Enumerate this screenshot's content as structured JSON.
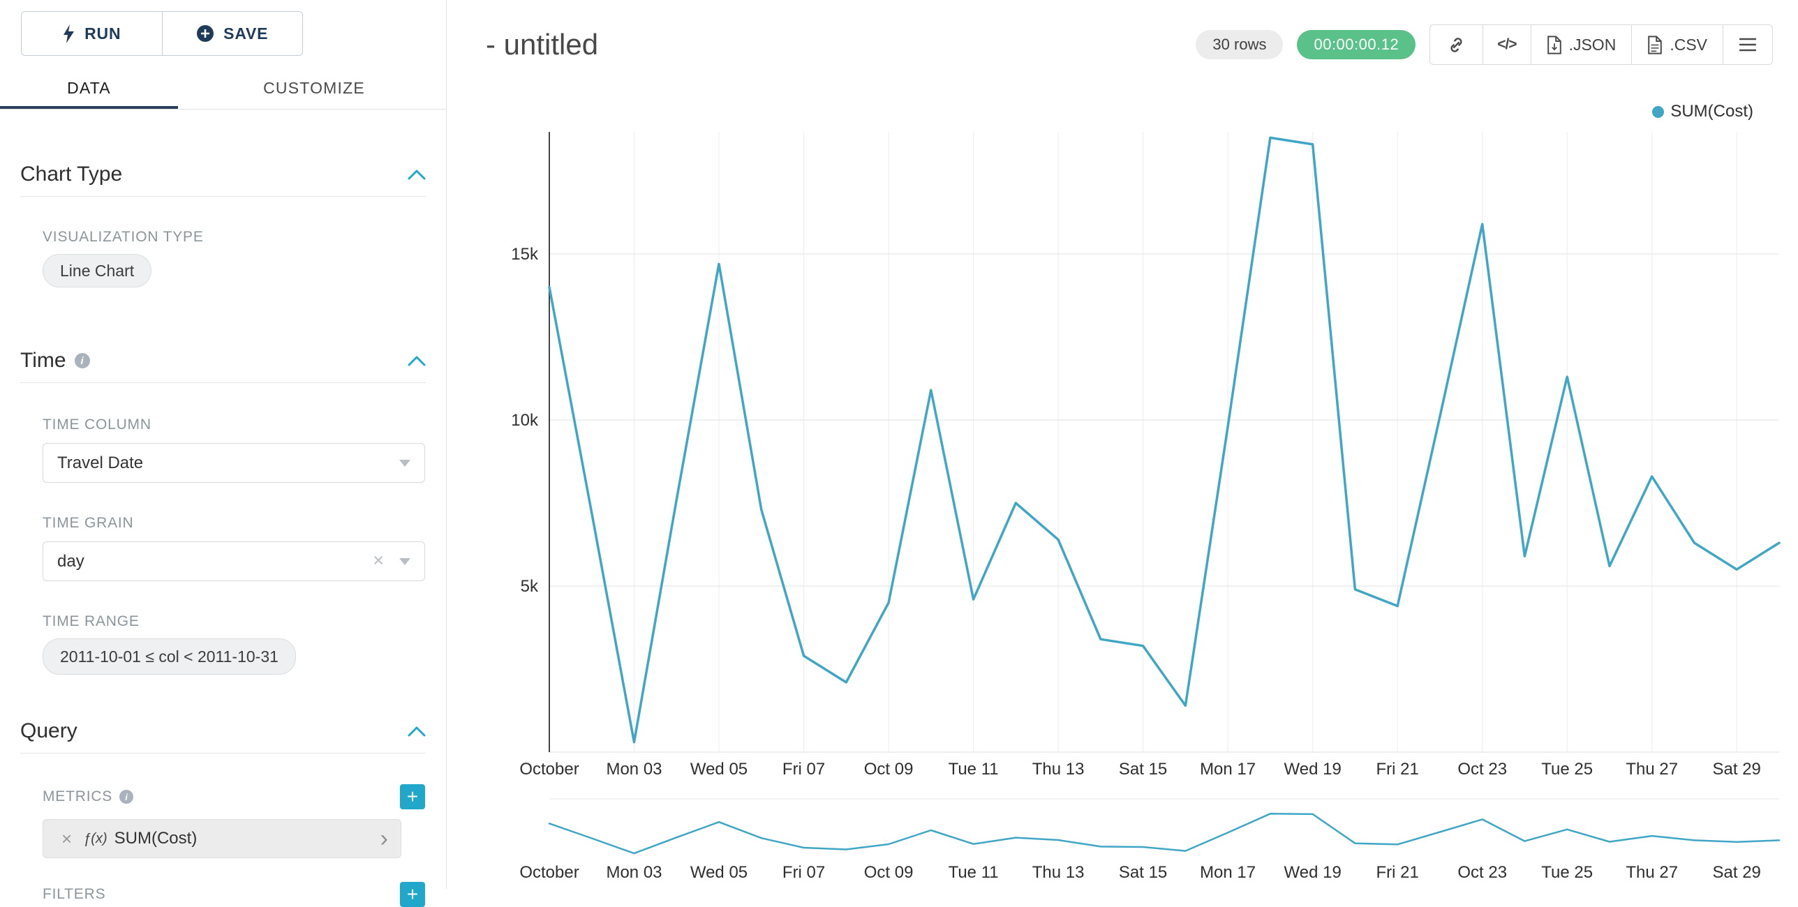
{
  "colors": {
    "accent": "#20a7c9",
    "success": "#5ac189",
    "line": "#3fa6c6",
    "ink_active_tab": "#2b3e5c"
  },
  "toolbar": {
    "run": "RUN",
    "save": "SAVE"
  },
  "tabs": {
    "data_label": "DATA",
    "customize_label": "CUSTOMIZE"
  },
  "panel": {
    "chart_type": {
      "title": "Chart Type",
      "viz_label": "VISUALIZATION TYPE",
      "viz_value": "Line Chart"
    },
    "time": {
      "title": "Time",
      "column_label": "TIME COLUMN",
      "column_value": "Travel Date",
      "grain_label": "TIME GRAIN",
      "grain_value": "day",
      "range_label": "TIME RANGE",
      "range_value": "2011-10-01 ≤ col < 2011-10-31"
    },
    "query": {
      "title": "Query",
      "metrics_label": "METRICS",
      "metric_fn": "ƒ(x)",
      "metric_value": "SUM(Cost)",
      "filters_label": "FILTERS"
    }
  },
  "header": {
    "title": "- untitled",
    "rows_badge": "30 rows",
    "timer": "00:00:00.12",
    "code_icon": "</>",
    "export_json": ".JSON",
    "export_csv": ".CSV"
  },
  "legend": {
    "series": "SUM(Cost)"
  },
  "chart_data": {
    "type": "line",
    "title": "",
    "x_categories": [
      "2011-10-01",
      "2011-10-02",
      "2011-10-03",
      "2011-10-04",
      "2011-10-05",
      "2011-10-06",
      "2011-10-07",
      "2011-10-08",
      "2011-10-09",
      "2011-10-10",
      "2011-10-11",
      "2011-10-12",
      "2011-10-13",
      "2011-10-14",
      "2011-10-15",
      "2011-10-16",
      "2011-10-17",
      "2011-10-18",
      "2011-10-19",
      "2011-10-20",
      "2011-10-21",
      "2011-10-22",
      "2011-10-23",
      "2011-10-24",
      "2011-10-25",
      "2011-10-26",
      "2011-10-27",
      "2011-10-28",
      "2011-10-29",
      "2011-10-30"
    ],
    "series": [
      {
        "name": "SUM(Cost)",
        "color": "#3fa6c6",
        "values": [
          14000,
          7200,
          300,
          7600,
          14700,
          7300,
          2900,
          2100,
          4500,
          10900,
          4600,
          7500,
          6400,
          3400,
          3200,
          1400,
          9800,
          18500,
          18300,
          4900,
          4400,
          10100,
          15900,
          5900,
          11300,
          5600,
          8300,
          6300,
          5500,
          6300
        ]
      }
    ],
    "x_ticks": [
      {
        "day": 1,
        "label": "October"
      },
      {
        "day": 3,
        "label": "Mon 03"
      },
      {
        "day": 5,
        "label": "Wed 05"
      },
      {
        "day": 7,
        "label": "Fri 07"
      },
      {
        "day": 9,
        "label": "Oct 09"
      },
      {
        "day": 11,
        "label": "Tue 11"
      },
      {
        "day": 13,
        "label": "Thu 13"
      },
      {
        "day": 15,
        "label": "Sat 15"
      },
      {
        "day": 17,
        "label": "Mon 17"
      },
      {
        "day": 19,
        "label": "Wed 19"
      },
      {
        "day": 21,
        "label": "Fri 21"
      },
      {
        "day": 23,
        "label": "Oct 23"
      },
      {
        "day": 25,
        "label": "Tue 25"
      },
      {
        "day": 27,
        "label": "Thu 27"
      },
      {
        "day": 29,
        "label": "Sat 29"
      }
    ],
    "y_ticks": [
      {
        "value": 5000,
        "label": "5k"
      },
      {
        "value": 10000,
        "label": "10k"
      },
      {
        "value": 15000,
        "label": "15k"
      }
    ],
    "ylim": [
      0,
      18600
    ],
    "grid": true,
    "legend_position": "top-right",
    "mini_range_chart": true
  }
}
